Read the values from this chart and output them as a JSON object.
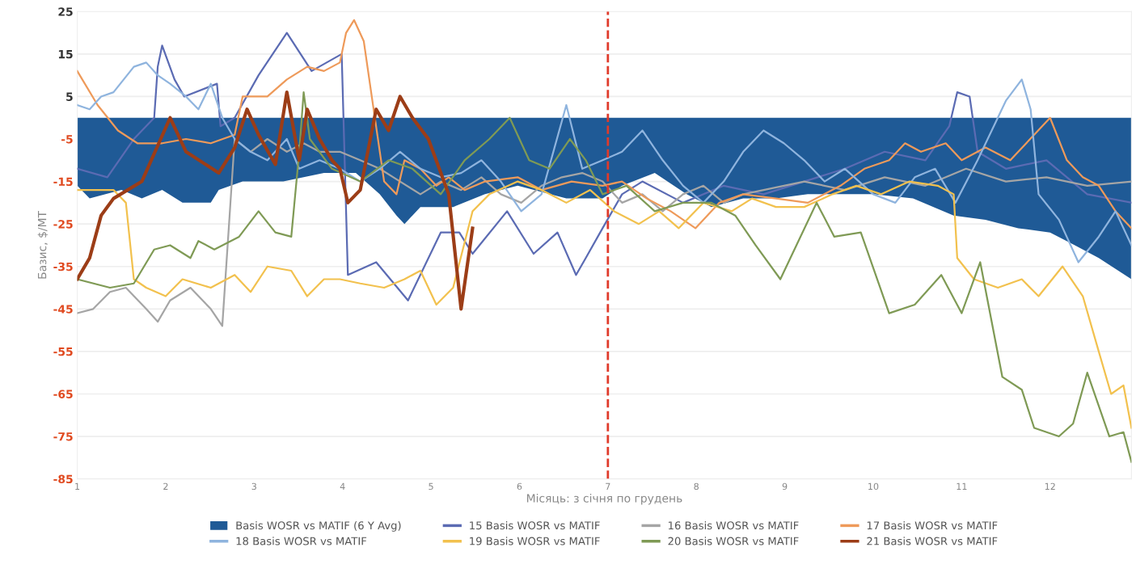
{
  "chart_data": {
    "type": "line",
    "xlabel": "Місяць: з січня по грудень",
    "ylabel": "Базис, $/МТ",
    "xlim": [
      1,
      12.92
    ],
    "xticks": [
      1,
      2,
      3,
      4,
      5,
      6,
      7,
      8,
      9,
      10,
      11,
      12
    ],
    "ylim": [
      -85,
      25
    ],
    "yticks": [
      25,
      15,
      5,
      -5,
      -15,
      -25,
      -35,
      -45,
      -55,
      -65,
      -75,
      -85
    ],
    "grid": "y",
    "legend": "bottom",
    "ref_lines": [
      {
        "axis": "x",
        "value": 7,
        "color": "#e03a2a",
        "line_style": "dashed"
      }
    ],
    "series": [
      {
        "name": "Basis WOSR vs MATIF (6 Y Avg)",
        "type": "area",
        "color": "#1f5a96",
        "x": [
          1,
          1.14,
          1.5,
          1.73,
          1.96,
          2.19,
          2.51,
          2.6,
          2.87,
          3.33,
          3.79,
          4.15,
          4.42,
          4.61,
          4.7,
          4.88,
          5.25,
          5.61,
          5.98,
          6.53,
          6.94,
          7.16,
          7.53,
          7.89,
          8.17,
          8.53,
          8.9,
          9.26,
          9.63,
          10.0,
          10.45,
          10.91,
          11.27,
          11.64,
          12.0,
          12.28,
          12.55,
          12.92
        ],
        "values": [
          -16,
          -19,
          -17,
          -19,
          -17,
          -20,
          -20,
          -17,
          -15,
          -15,
          -13,
          -13,
          -18,
          -23,
          -25,
          -21,
          -21,
          -18,
          -16,
          -19,
          -19,
          -16,
          -13,
          -18,
          -21,
          -19,
          -19,
          -18,
          -18,
          -18,
          -19,
          -23,
          -24,
          -26,
          -27,
          -30,
          -33,
          -38
        ]
      },
      {
        "name": "15 Basis WOSR vs MATIF",
        "color": "#5b6bb3",
        "x": [
          1,
          1.34,
          1.64,
          1.87,
          1.91,
          1.96,
          2.1,
          2.21,
          2.58,
          2.62,
          2.78,
          3.05,
          3.37,
          3.65,
          3.99,
          4.06,
          4.38,
          4.74,
          5.11,
          5.32,
          5.47,
          5.86,
          6.16,
          6.43,
          6.64,
          6.75,
          6.94,
          7.16,
          7.39,
          7.85,
          8.31,
          8.76,
          9.22,
          9.68,
          10.13,
          10.59,
          10.86,
          10.95,
          11.09,
          11.18,
          11.5,
          11.96,
          12.42,
          12.92
        ],
        "values": [
          -12,
          -14,
          -5,
          0,
          12,
          17,
          9,
          5,
          8,
          -2,
          0,
          10,
          20,
          11,
          15,
          -37,
          -34,
          -43,
          -27,
          -27,
          -32,
          -22,
          -32,
          -27,
          -37,
          -33,
          -26,
          -18,
          -15,
          -20,
          -16,
          -18,
          -15,
          -12,
          -8,
          -10,
          -2,
          6,
          5,
          -8,
          -12,
          -10,
          -18,
          -20
        ]
      },
      {
        "name": "16 Basis WOSR vs MATIF",
        "color": "#a5a5a5",
        "x": [
          1,
          1.18,
          1.37,
          1.55,
          1.78,
          1.91,
          2.05,
          2.28,
          2.51,
          2.64,
          2.78,
          2.96,
          3.15,
          3.37,
          3.56,
          3.74,
          3.97,
          4.2,
          4.42,
          4.65,
          4.88,
          5.11,
          5.34,
          5.57,
          5.79,
          6.02,
          6.25,
          6.48,
          6.71,
          6.94,
          7.16,
          7.39,
          7.62,
          7.85,
          8.08,
          8.31,
          8.53,
          8.76,
          9.22,
          9.68,
          10.13,
          10.59,
          11.05,
          11.5,
          11.96,
          12.42,
          12.92
        ],
        "values": [
          -46,
          -45,
          -41,
          -40,
          -45,
          -48,
          -43,
          -40,
          -45,
          -49,
          -5,
          -8,
          -5,
          -8,
          -6,
          -8,
          -8,
          -10,
          -12,
          -15,
          -18,
          -15,
          -17,
          -14,
          -18,
          -20,
          -16,
          -14,
          -13,
          -15,
          -20,
          -18,
          -22,
          -18,
          -16,
          -20,
          -18,
          -17,
          -15,
          -17,
          -14,
          -16,
          -12,
          -15,
          -14,
          -16,
          -15
        ]
      },
      {
        "name": "17 Basis WOSR vs MATIF",
        "color": "#ee9a5a",
        "x": [
          1,
          1.23,
          1.46,
          1.68,
          1.96,
          2.23,
          2.51,
          2.78,
          2.87,
          3.15,
          3.37,
          3.6,
          3.79,
          3.97,
          4.04,
          4.13,
          4.24,
          4.33,
          4.47,
          4.61,
          4.7,
          4.88,
          5.06,
          5.2,
          5.38,
          5.61,
          5.98,
          6.25,
          6.59,
          6.94,
          7.16,
          7.44,
          7.71,
          7.99,
          8.26,
          8.53,
          8.9,
          9.26,
          9.63,
          9.9,
          10.18,
          10.36,
          10.54,
          10.82,
          11.0,
          11.27,
          11.55,
          11.82,
          12.0,
          12.19,
          12.37,
          12.55,
          12.74,
          12.92
        ],
        "values": [
          11,
          3,
          -3,
          -6,
          -6,
          -5,
          -6,
          -4,
          5,
          5,
          9,
          12,
          11,
          13,
          20,
          23,
          18,
          5,
          -15,
          -18,
          -10,
          -12,
          -16,
          -14,
          -17,
          -15,
          -14,
          -17,
          -15,
          -16,
          -15,
          -19,
          -22,
          -26,
          -20,
          -18,
          -19,
          -20,
          -16,
          -12,
          -10,
          -6,
          -8,
          -6,
          -10,
          -7,
          -10,
          -4,
          0,
          -10,
          -14,
          -16,
          -22,
          -26
        ]
      },
      {
        "name": "18 Basis WOSR vs MATIF",
        "color": "#8fb4de",
        "x": [
          1,
          1.14,
          1.27,
          1.41,
          1.64,
          1.78,
          1.91,
          2.05,
          2.23,
          2.37,
          2.51,
          2.64,
          2.78,
          2.96,
          3.15,
          3.37,
          3.51,
          3.74,
          3.97,
          4.2,
          4.42,
          4.65,
          4.88,
          5.11,
          5.34,
          5.57,
          5.79,
          6.02,
          6.25,
          6.53,
          6.71,
          6.94,
          7.16,
          7.39,
          7.62,
          7.85,
          8.08,
          8.31,
          8.53,
          8.76,
          8.99,
          9.22,
          9.45,
          9.68,
          10.0,
          10.25,
          10.47,
          10.7,
          10.93,
          11.18,
          11.5,
          11.68,
          11.78,
          11.87,
          12.1,
          12.32,
          12.55,
          12.74,
          12.92
        ],
        "values": [
          3,
          2,
          5,
          6,
          12,
          13,
          10,
          8,
          5,
          2,
          8,
          0,
          -5,
          -8,
          -10,
          -5,
          -12,
          -10,
          -12,
          -15,
          -12,
          -8,
          -12,
          -14,
          -13,
          -10,
          -15,
          -22,
          -18,
          3,
          -12,
          -10,
          -8,
          -3,
          -10,
          -16,
          -20,
          -15,
          -8,
          -3,
          -6,
          -10,
          -15,
          -12,
          -18,
          -20,
          -14,
          -12,
          -20,
          -10,
          4,
          9,
          2,
          -18,
          -24,
          -34,
          -28,
          -22,
          -30
        ]
      },
      {
        "name": "19 Basis WOSR vs MATIF",
        "color": "#f2c14e",
        "x": [
          1,
          1.41,
          1.55,
          1.64,
          1.78,
          2.0,
          2.19,
          2.51,
          2.78,
          2.96,
          3.15,
          3.42,
          3.6,
          3.79,
          3.97,
          4.2,
          4.47,
          4.7,
          4.88,
          5.06,
          5.25,
          5.47,
          5.66,
          5.98,
          6.25,
          6.53,
          6.8,
          7.07,
          7.35,
          7.58,
          7.8,
          8.08,
          8.4,
          8.63,
          8.9,
          9.22,
          9.54,
          9.81,
          10.09,
          10.41,
          10.73,
          10.91,
          10.95,
          11.14,
          11.41,
          11.68,
          11.87,
          12.14,
          12.37,
          12.55,
          12.69,
          12.83,
          12.92
        ],
        "values": [
          -17,
          -17,
          -20,
          -38,
          -40,
          -42,
          -38,
          -40,
          -37,
          -41,
          -35,
          -36,
          -42,
          -38,
          -38,
          -39,
          -40,
          -38,
          -36,
          -44,
          -40,
          -22,
          -18,
          -15,
          -17,
          -20,
          -17,
          -22,
          -25,
          -22,
          -26,
          -20,
          -22,
          -19,
          -21,
          -21,
          -18,
          -16,
          -18,
          -15,
          -16,
          -18,
          -33,
          -38,
          -40,
          -38,
          -42,
          -35,
          -42,
          -55,
          -65,
          -63,
          -73
        ]
      },
      {
        "name": "20 Basis WOSR vs MATIF",
        "color": "#7f9a55",
        "x": [
          1,
          1.37,
          1.64,
          1.87,
          2.05,
          2.28,
          2.37,
          2.55,
          2.83,
          3.05,
          3.24,
          3.42,
          3.51,
          3.56,
          3.63,
          3.88,
          4.2,
          4.52,
          4.79,
          5.11,
          5.38,
          5.66,
          5.89,
          6.11,
          6.34,
          6.57,
          6.75,
          6.94,
          7.21,
          7.53,
          7.85,
          8.17,
          8.44,
          8.67,
          8.95,
          9.36,
          9.56,
          9.86,
          10.18,
          10.47,
          10.77,
          11.0,
          11.21,
          11.46,
          11.68,
          11.82,
          12.1,
          12.26,
          12.42,
          12.67,
          12.83,
          12.92
        ],
        "values": [
          -38,
          -40,
          -39,
          -31,
          -30,
          -33,
          -29,
          -31,
          -28,
          -22,
          -27,
          -28,
          -8,
          6,
          -5,
          -12,
          -15,
          -10,
          -12,
          -18,
          -10,
          -5,
          0,
          -10,
          -12,
          -5,
          -10,
          -18,
          -16,
          -22,
          -20,
          -20,
          -23,
          -30,
          -38,
          -20,
          -28,
          -27,
          -46,
          -44,
          -37,
          -46,
          -34,
          -61,
          -64,
          -73,
          -75,
          -72,
          -60,
          -75,
          -74,
          -81
        ]
      },
      {
        "name": "21 Basis WOSR vs MATIF",
        "color": "#9c3d17",
        "x": [
          1,
          1.14,
          1.27,
          1.41,
          1.73,
          2.05,
          2.23,
          2.6,
          2.78,
          2.92,
          3.05,
          3.24,
          3.37,
          3.51,
          3.6,
          3.74,
          3.88,
          3.97,
          4.06,
          4.2,
          4.38,
          4.52,
          4.65,
          4.79,
          4.97,
          5.2,
          5.34,
          5.47
        ],
        "values": [
          -38,
          -33,
          -23,
          -19,
          -15,
          0,
          -8,
          -13,
          -7,
          2,
          -4,
          -11,
          6,
          -10,
          2,
          -5,
          -10,
          -12,
          -20,
          -17,
          2,
          -3,
          5,
          0,
          -5,
          -18,
          -45,
          -26
        ]
      }
    ]
  }
}
